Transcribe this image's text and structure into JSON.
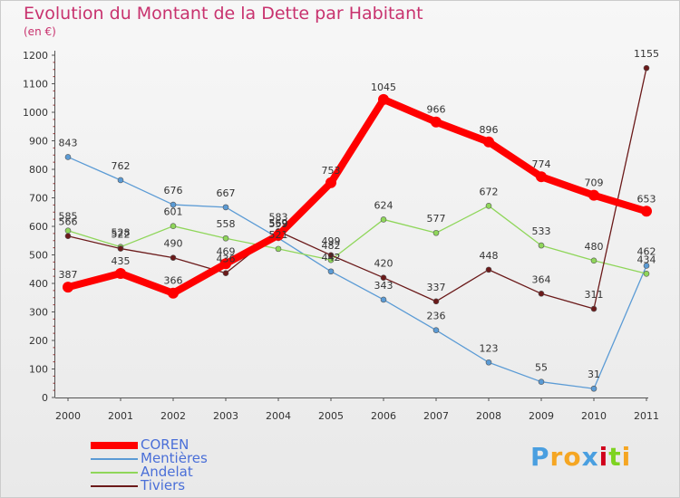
{
  "chart_data": {
    "type": "line",
    "title": "Evolution du Montant de la Dette par Habitant",
    "subtitle": "(en €)",
    "x": [
      "2000",
      "2001",
      "2002",
      "2003",
      "2004",
      "2005",
      "2006",
      "2007",
      "2008",
      "2009",
      "2010",
      "2011"
    ],
    "y_ticks": [
      "0",
      "100",
      "200",
      "300",
      "400",
      "500",
      "600",
      "700",
      "800",
      "900",
      "1000",
      "1100",
      "1200"
    ],
    "ylim": [
      0,
      1200
    ],
    "grid": false,
    "legend_position": "bottom-left",
    "series": [
      {
        "name": "COREN",
        "color": "#ff0000",
        "values": [
          387,
          435,
          366,
          469,
          569,
          753,
          1045,
          966,
          896,
          774,
          709,
          653
        ]
      },
      {
        "name": "Mentières",
        "color": "#5b9bd5",
        "values": [
          843,
          762,
          676,
          667,
          559,
          442,
          343,
          236,
          123,
          55,
          31,
          462
        ]
      },
      {
        "name": "Andelat",
        "color": "#8fd65a",
        "values": [
          585,
          528,
          601,
          558,
          521,
          482,
          624,
          577,
          672,
          533,
          480,
          434
        ]
      },
      {
        "name": "Tiviers",
        "color": "#6b1a1a",
        "values": [
          566,
          522,
          490,
          436,
          583,
          499,
          420,
          337,
          448,
          364,
          311,
          1155
        ]
      }
    ]
  },
  "logo": {
    "letters": [
      "P",
      "r",
      "o",
      "x",
      "i",
      "t",
      "i"
    ],
    "colors": [
      "#4a9fe0",
      "#f5a623",
      "#f5a623",
      "#4a9fe0",
      "#d0021b",
      "#7ed321",
      "#f5a623"
    ]
  }
}
